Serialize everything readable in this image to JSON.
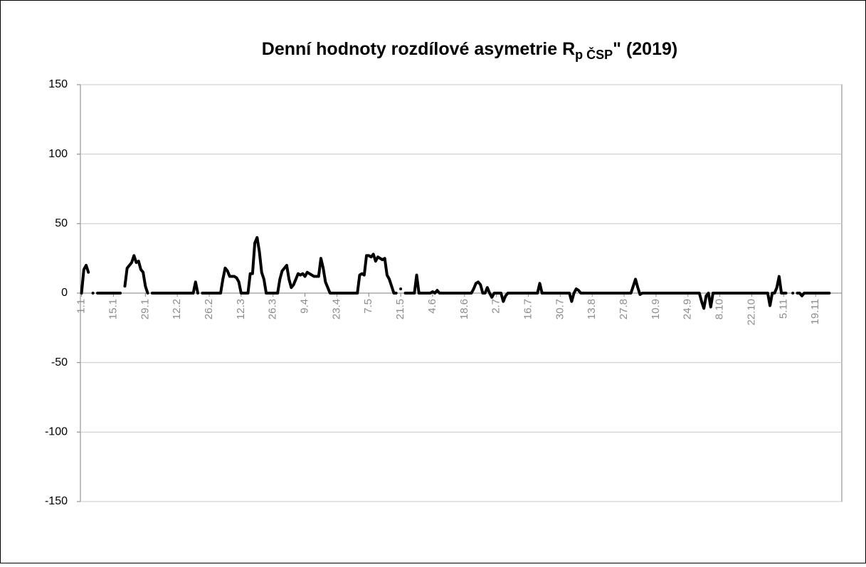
{
  "chart_data": {
    "type": "line",
    "title": {
      "text": "Denní hodnoty rozdílové asymetrie R",
      "subscript": "p ČSP",
      "suffix": "\" (2019)"
    },
    "categories": [
      "1.1",
      null,
      null,
      null,
      null,
      null,
      null,
      null,
      null,
      null,
      null,
      null,
      null,
      null,
      "15.1",
      null,
      null,
      null,
      null,
      null,
      null,
      null,
      null,
      null,
      null,
      null,
      null,
      null,
      "29.1",
      null,
      null,
      null,
      null,
      null,
      null,
      null,
      null,
      null,
      null,
      null,
      null,
      null,
      "12.2",
      null,
      null,
      null,
      null,
      null,
      null,
      null,
      null,
      null,
      null,
      null,
      null,
      null,
      "26.2",
      null,
      null,
      null,
      null,
      null,
      null,
      null,
      null,
      null,
      null,
      null,
      null,
      null,
      "12.3",
      null,
      null,
      null,
      null,
      null,
      null,
      null,
      null,
      null,
      null,
      null,
      null,
      null,
      "26.3",
      null,
      null,
      null,
      null,
      null,
      null,
      null,
      null,
      null,
      null,
      null,
      null,
      null,
      "9.4",
      null,
      null,
      null,
      null,
      null,
      null,
      null,
      null,
      null,
      null,
      null,
      null,
      null,
      "23.4",
      null,
      null,
      null,
      null,
      null,
      null,
      null,
      null,
      null,
      null,
      null,
      null,
      null,
      "7.5",
      null,
      null,
      null,
      null,
      null,
      null,
      null,
      null,
      null,
      null,
      null,
      null,
      null,
      "21.5",
      null,
      null,
      null,
      null,
      null,
      null,
      null,
      null,
      null,
      null,
      null,
      null,
      null,
      "4.6",
      null,
      null,
      null,
      null,
      null,
      null,
      null,
      null,
      null,
      null,
      null,
      null,
      null,
      "18.6",
      null,
      null,
      null,
      null,
      null,
      null,
      null,
      null,
      null,
      null,
      null,
      null,
      null,
      "2.7",
      null,
      null,
      null,
      null,
      null,
      null,
      null,
      null,
      null,
      null,
      null,
      null,
      null,
      "16.7",
      null,
      null,
      null,
      null,
      null,
      null,
      null,
      null,
      null,
      null,
      null,
      null,
      null,
      "30.7",
      null,
      null,
      null,
      null,
      null,
      null,
      null,
      null,
      null,
      null,
      null,
      null,
      null,
      "13.8",
      null,
      null,
      null,
      null,
      null,
      null,
      null,
      null,
      null,
      null,
      null,
      null,
      null,
      "27.8",
      null,
      null,
      null,
      null,
      null,
      null,
      null,
      null,
      null,
      null,
      null,
      null,
      null,
      "10.9",
      null,
      null,
      null,
      null,
      null,
      null,
      null,
      null,
      null,
      null,
      null,
      null,
      null,
      "24.9",
      null,
      null,
      null,
      null,
      null,
      null,
      null,
      null,
      null,
      null,
      null,
      null,
      null,
      "8.10",
      null,
      null,
      null,
      null,
      null,
      null,
      null,
      null,
      null,
      null,
      null,
      null,
      null,
      "22.10",
      null,
      null,
      null,
      null,
      null,
      null,
      null,
      null,
      null,
      null,
      null,
      null,
      null,
      "5.11",
      null,
      null,
      null,
      null,
      null,
      null,
      null,
      null,
      null,
      null,
      null,
      null,
      null,
      "19.11",
      null,
      null,
      null,
      null,
      null,
      null,
      null,
      null,
      null,
      null,
      null
    ],
    "series": [
      {
        "color": "#000000",
        "values": [
          0,
          17,
          20,
          15,
          null,
          0,
          null,
          0,
          0,
          0,
          0,
          0,
          0,
          0,
          0,
          0,
          0,
          0,
          null,
          5,
          18,
          20,
          22,
          27,
          22,
          23,
          17,
          15,
          5,
          0,
          null,
          0,
          0,
          0,
          0,
          0,
          0,
          0,
          0,
          0,
          0,
          0,
          0,
          0,
          0,
          0,
          0,
          0,
          0,
          0,
          8,
          0,
          null,
          0,
          0,
          0,
          0,
          0,
          0,
          0,
          0,
          0,
          10,
          18,
          16,
          12,
          12,
          12,
          11,
          8,
          0,
          0,
          0,
          0,
          14,
          14,
          36,
          40,
          30,
          15,
          10,
          0,
          0,
          0,
          0,
          0,
          0,
          10,
          16,
          18,
          20,
          10,
          4,
          6,
          10,
          14,
          13,
          14,
          12,
          15,
          14,
          13,
          12,
          12,
          12,
          25,
          18,
          8,
          4,
          0,
          0,
          0,
          0,
          0,
          0,
          0,
          0,
          0,
          0,
          0,
          0,
          0,
          13,
          14,
          13,
          27,
          27,
          26,
          28,
          23,
          26,
          25,
          24,
          25,
          13,
          10,
          5,
          0,
          0,
          null,
          3,
          null,
          0,
          0,
          0,
          0,
          0,
          13,
          0,
          0,
          0,
          0,
          0,
          0,
          1,
          0,
          2,
          0,
          0,
          0,
          0,
          0,
          0,
          0,
          0,
          0,
          0,
          0,
          0,
          0,
          0,
          0,
          3,
          7,
          8,
          6,
          0,
          0,
          4,
          0,
          -3,
          0,
          0,
          0,
          0,
          -6,
          -2,
          0,
          0,
          0,
          0,
          0,
          0,
          0,
          0,
          0,
          0,
          0,
          0,
          0,
          0,
          7,
          0,
          0,
          0,
          0,
          0,
          0,
          0,
          0,
          0,
          0,
          0,
          0,
          0,
          -6,
          0,
          3,
          2,
          0,
          0,
          0,
          0,
          0,
          0,
          0,
          0,
          0,
          0,
          0,
          0,
          0,
          0,
          0,
          0,
          0,
          0,
          0,
          0,
          0,
          0,
          0,
          5,
          10,
          4,
          -1,
          0,
          0,
          0,
          0,
          0,
          0,
          0,
          0,
          0,
          0,
          0,
          0,
          0,
          0,
          0,
          0,
          0,
          0,
          0,
          0,
          0,
          0,
          0,
          0,
          0,
          0,
          -6,
          -11,
          -2,
          0,
          -10,
          0,
          0,
          0,
          0,
          0,
          0,
          0,
          0,
          0,
          0,
          0,
          0,
          0,
          0,
          0,
          0,
          0,
          0,
          0,
          0,
          0,
          0,
          0,
          0,
          0,
          -9,
          0,
          0,
          4,
          12,
          0,
          0,
          0,
          null,
          null,
          0,
          null,
          0,
          0,
          -2,
          0,
          0,
          0,
          0,
          0,
          0,
          0,
          0,
          0,
          0,
          0,
          0,
          null,
          null,
          null,
          null,
          null
        ]
      }
    ],
    "ylim": [
      -150,
      150
    ],
    "yticks": [
      -150,
      -100,
      -50,
      0,
      50,
      100,
      150
    ],
    "grid": true
  }
}
